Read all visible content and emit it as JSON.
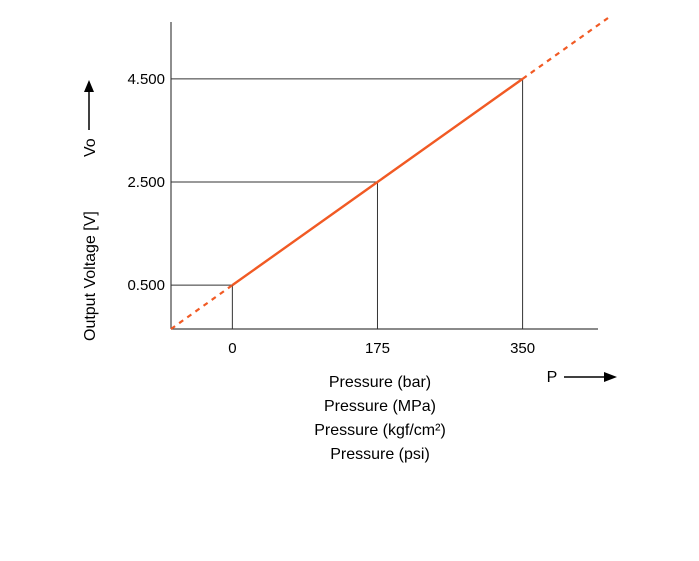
{
  "chart_data": {
    "type": "line",
    "title": "",
    "ylabel": "Output Voltage [V]",
    "y_symbol": "Vo",
    "x_symbol": "P",
    "xlabels": [
      "Pressure (bar)",
      "Pressure (MPa)",
      "Pressure (kgf/cm²)",
      "Pressure (psi)"
    ],
    "x_ticks": [
      {
        "value": 0,
        "label": "0"
      },
      {
        "value": 175,
        "label": "175"
      },
      {
        "value": 350,
        "label": "350"
      }
    ],
    "y_ticks": [
      {
        "value": 0.5,
        "label": "0.500"
      },
      {
        "value": 2.5,
        "label": "2.500"
      },
      {
        "value": 4.5,
        "label": "4.500"
      }
    ],
    "series": [
      {
        "name": "Output voltage",
        "color": "#f15a24",
        "points": [
          {
            "x": 0,
            "y": 0.5
          },
          {
            "x": 175,
            "y": 2.5
          },
          {
            "x": 350,
            "y": 4.5
          }
        ],
        "extrapolate_low": {
          "x": -74,
          "y": -0.35
        },
        "extrapolate_high": {
          "x": 453,
          "y": 5.68
        }
      }
    ],
    "xlim": [
      -74,
      453
    ],
    "ylim": [
      -0.35,
      5.68
    ],
    "grid": false,
    "reference_lines_to_axes": true
  }
}
